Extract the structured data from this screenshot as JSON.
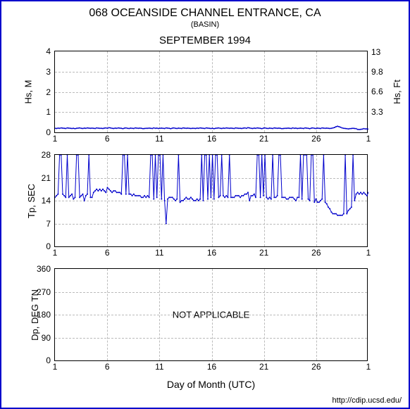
{
  "title_main": "068 OCEANSIDE CHANNEL ENTRANCE, CA",
  "title_sub": "(BASIN)",
  "title_month": "SEPTEMBER 1994",
  "xlabel": "Day of Month (UTC)",
  "credit": "http://cdip.ucsd.edu/",
  "line_color": "#0000cc",
  "grid_color": "#bbbbbb",
  "frame_color": "#0000cc",
  "x_ticks": [
    1,
    6,
    11,
    16,
    21,
    26,
    1
  ],
  "x_tick_pos": [
    0,
    5,
    10,
    15,
    20,
    25,
    30
  ],
  "x_domain": [
    0,
    30
  ],
  "panels": {
    "hs": {
      "height": 115,
      "ylabel_left": "Hs, M",
      "ylabel_right": "Hs, Ft",
      "y_domain": [
        0,
        4
      ],
      "y_ticks_left": [
        0,
        1,
        2,
        3,
        4
      ],
      "y_ticks_right": [
        {
          "v": 0,
          "label": ""
        },
        {
          "v": 1.006,
          "label": "3.3"
        },
        {
          "v": 2.012,
          "label": "6.6"
        },
        {
          "v": 2.987,
          "label": "9.8"
        },
        {
          "v": 3.963,
          "label": "13"
        }
      ],
      "data": [
        0.2,
        0.19,
        0.21,
        0.2,
        0.22,
        0.21,
        0.2,
        0.19,
        0.22,
        0.21,
        0.2,
        0.19,
        0.2,
        0.18,
        0.2,
        0.21,
        0.22,
        0.2,
        0.19,
        0.21,
        0.2,
        0.22,
        0.21,
        0.2,
        0.21,
        0.2,
        0.19,
        0.22,
        0.21,
        0.2,
        0.2,
        0.19,
        0.21,
        0.22,
        0.2,
        0.23,
        0.22,
        0.2,
        0.19,
        0.21,
        0.2,
        0.22,
        0.21,
        0.2,
        0.18,
        0.21,
        0.22,
        0.2,
        0.19,
        0.21,
        0.2,
        0.19,
        0.22,
        0.21,
        0.2,
        0.21,
        0.2,
        0.18,
        0.19,
        0.2,
        0.2,
        0.21,
        0.2,
        0.19,
        0.22,
        0.2,
        0.21,
        0.19,
        0.2,
        0.21,
        0.2,
        0.19,
        0.22,
        0.21,
        0.2,
        0.18,
        0.21,
        0.22,
        0.2,
        0.19,
        0.21,
        0.2,
        0.19,
        0.22,
        0.21,
        0.2,
        0.21,
        0.2,
        0.19,
        0.2,
        0.2,
        0.19,
        0.21,
        0.2,
        0.22,
        0.21,
        0.2,
        0.19,
        0.22,
        0.21,
        0.2,
        0.19,
        0.2,
        0.18,
        0.2,
        0.21,
        0.22,
        0.2,
        0.19,
        0.21,
        0.2,
        0.22,
        0.21,
        0.2,
        0.21,
        0.2,
        0.19,
        0.22,
        0.21,
        0.2,
        0.2,
        0.19,
        0.21,
        0.22,
        0.2,
        0.23,
        0.22,
        0.2,
        0.19,
        0.21,
        0.2,
        0.22,
        0.21,
        0.2,
        0.18,
        0.21,
        0.22,
        0.2,
        0.19,
        0.21,
        0.2,
        0.19,
        0.22,
        0.21,
        0.2,
        0.21,
        0.2,
        0.18,
        0.19,
        0.2,
        0.2,
        0.21,
        0.2,
        0.19,
        0.22,
        0.2,
        0.21,
        0.19,
        0.2,
        0.21,
        0.2,
        0.19,
        0.22,
        0.21,
        0.2,
        0.18,
        0.21,
        0.22,
        0.2,
        0.19,
        0.21,
        0.2,
        0.19,
        0.22,
        0.21,
        0.2,
        0.21,
        0.2,
        0.19,
        0.2,
        0.22,
        0.24,
        0.28,
        0.3,
        0.28,
        0.25,
        0.22,
        0.2,
        0.19,
        0.18,
        0.17,
        0.18,
        0.19,
        0.2,
        0.19,
        0.18,
        0.15,
        0.14,
        0.15,
        0.16,
        0.18,
        0.17,
        0.17,
        0.16
      ]
    },
    "tp": {
      "height": 130,
      "ylabel_left": "Tp, SEC",
      "y_domain": [
        0,
        28
      ],
      "y_ticks_left": [
        0,
        7,
        14,
        21,
        28
      ],
      "data": [
        15,
        15.5,
        16,
        28,
        28,
        16,
        15.5,
        15,
        28,
        15,
        15.5,
        16,
        14.5,
        15,
        28,
        28,
        15,
        15.5,
        16,
        14,
        15.5,
        16,
        28,
        15,
        15,
        16.5,
        17,
        17.5,
        17,
        17.5,
        17,
        17.5,
        17,
        16.5,
        18,
        17.5,
        17,
        16.5,
        17,
        17,
        16.5,
        16.5,
        16.5,
        16,
        28,
        28,
        16,
        28,
        16,
        16,
        15.5,
        16,
        15.5,
        15.5,
        15.5,
        15.5,
        15,
        15,
        15.5,
        15,
        15.5,
        15,
        28,
        28,
        14.5,
        28,
        15,
        28,
        28,
        14.5,
        28,
        14,
        7,
        14.5,
        15,
        15,
        15,
        14.5,
        14,
        14.5,
        28,
        13.5,
        14,
        14,
        14.5,
        15,
        14.5,
        14.5,
        15,
        14.5,
        14,
        14,
        14.5,
        14,
        14.5,
        28,
        14,
        28,
        28,
        14.5,
        28,
        15,
        28,
        14.5,
        28,
        28,
        15,
        15.5,
        28,
        15.5,
        15,
        15.5,
        15,
        28,
        15,
        15,
        15,
        15.5,
        15.5,
        15.5,
        15,
        15.5,
        15.5,
        16,
        16,
        16.5,
        14,
        15.5,
        15.5,
        16,
        15,
        28,
        28,
        15,
        28,
        15.5,
        28,
        15,
        14.5,
        15,
        14.5,
        28,
        15,
        15,
        15.5,
        28,
        28,
        15,
        15,
        15,
        14.5,
        14.5,
        15,
        15,
        15,
        14.5,
        14,
        15,
        15,
        28,
        14.5,
        28,
        28,
        28,
        14.5,
        14,
        28,
        28,
        13.5,
        14.5,
        13.5,
        13.5,
        14,
        14.5,
        28,
        13.5,
        13,
        12,
        11.5,
        10.5,
        10,
        10,
        10,
        9.5,
        9.5,
        9.5,
        9.5,
        10,
        28,
        10,
        11,
        11.5,
        12,
        28,
        14,
        16,
        16.5,
        16,
        16.5,
        16,
        16.5,
        16,
        15.5,
        16.5
      ]
    },
    "dp": {
      "height": 130,
      "ylabel_left": "Dp, DEG TN",
      "y_domain": [
        0,
        360
      ],
      "y_ticks_left": [
        0,
        90,
        180,
        270,
        360
      ],
      "na_text": "NOT APPLICABLE"
    }
  }
}
